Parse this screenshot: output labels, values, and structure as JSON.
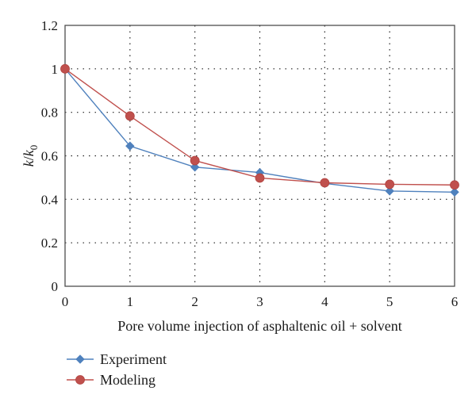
{
  "chart_data": {
    "type": "line",
    "xlabel": "Pore volume injection of asphaltenic oil + solvent",
    "ylabel": {
      "base": "k",
      "slash": "/",
      "denominator": "k",
      "subscript": "0"
    },
    "xlim": [
      0,
      6
    ],
    "ylim": [
      0,
      1.2
    ],
    "x_ticks": [
      "0",
      "1",
      "2",
      "3",
      "4",
      "5",
      "6"
    ],
    "y_ticks": [
      "0",
      "0.2",
      "0.4",
      "0.6",
      "0.8",
      "1",
      "1.2"
    ],
    "grid": true,
    "legend_position": "bottom-left",
    "x": [
      0,
      1,
      2,
      3,
      4,
      5,
      6
    ],
    "series": [
      {
        "name": "Experiment",
        "values": [
          1.0,
          0.645,
          0.548,
          0.523,
          0.473,
          0.438,
          0.433
        ],
        "color": "#4f81bd",
        "marker": "diamond"
      },
      {
        "name": "Modeling",
        "values": [
          1.0,
          0.783,
          0.578,
          0.498,
          0.476,
          0.469,
          0.466
        ],
        "color": "#c0504d",
        "marker": "circle"
      }
    ]
  }
}
